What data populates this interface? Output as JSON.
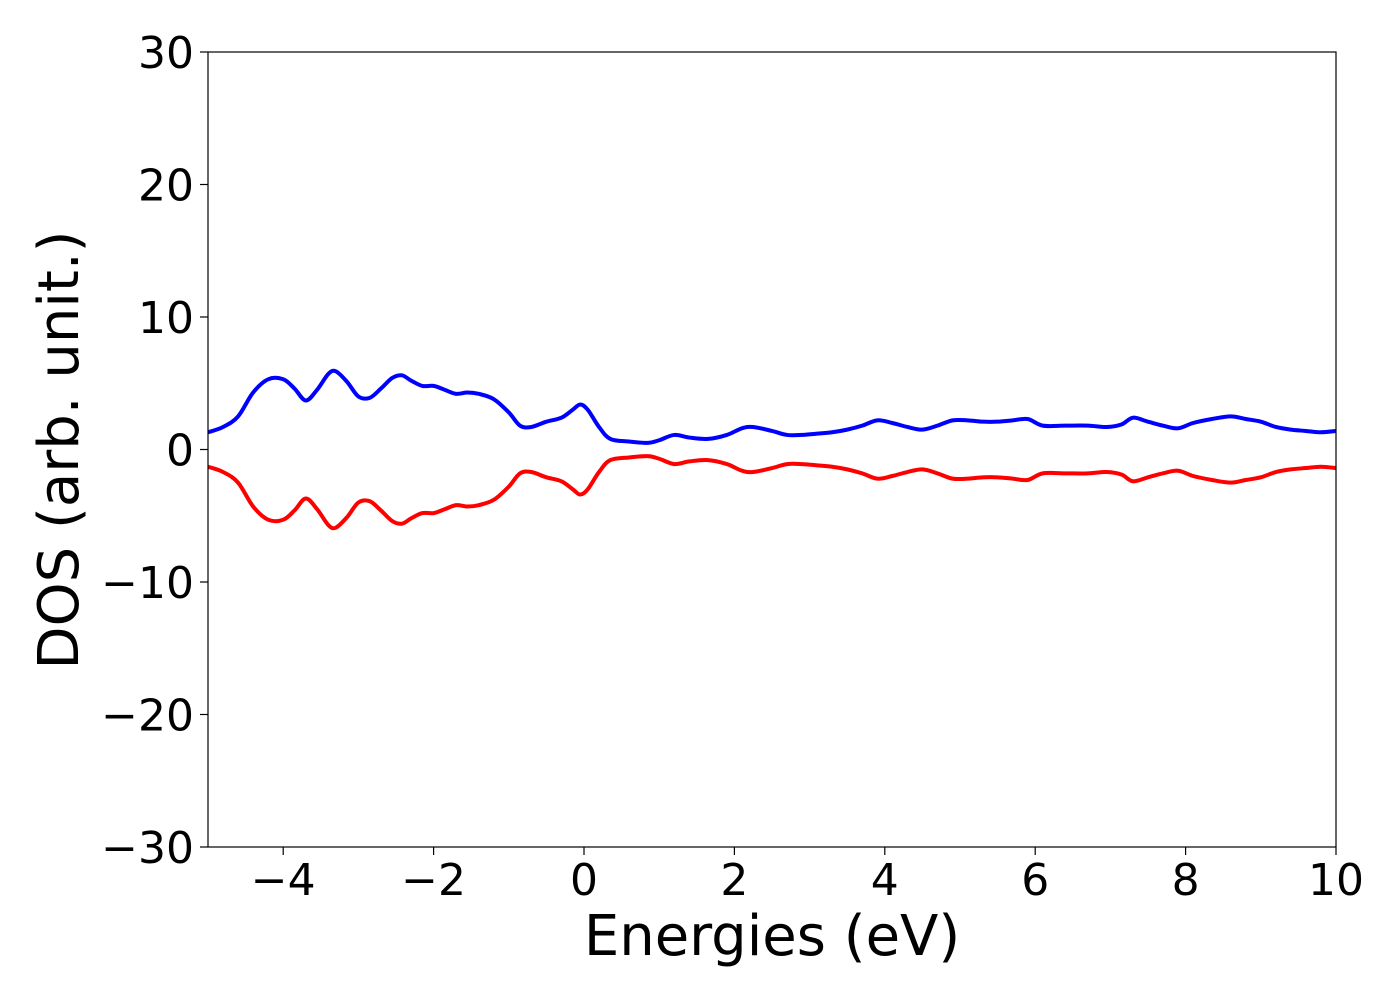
{
  "chart_data": {
    "type": "line",
    "title": "",
    "xlabel": "Energies (eV)",
    "ylabel": "DOS (arb. unit.)",
    "xlim": [
      -5,
      10
    ],
    "ylim": [
      -30,
      30
    ],
    "x_ticks": [
      -4,
      -2,
      0,
      2,
      4,
      6,
      8,
      10
    ],
    "y_ticks": [
      -30,
      -20,
      -10,
      0,
      10,
      20,
      30
    ],
    "x_tick_labels": [
      "−4",
      "−2",
      "0",
      "2",
      "4",
      "6",
      "8",
      "10"
    ],
    "y_tick_labels": [
      "−30",
      "−20",
      "−10",
      "0",
      "10",
      "20",
      "30"
    ],
    "grid": false,
    "legend": "none",
    "series": [
      {
        "color": "#0000ff",
        "x": [
          -5.0,
          -4.8,
          -4.6,
          -4.4,
          -4.2,
          -4.0,
          -3.85,
          -3.7,
          -3.55,
          -3.4,
          -3.3,
          -3.15,
          -3.0,
          -2.85,
          -2.7,
          -2.55,
          -2.42,
          -2.3,
          -2.15,
          -2.0,
          -1.85,
          -1.7,
          -1.55,
          -1.4,
          -1.2,
          -1.0,
          -0.85,
          -0.7,
          -0.5,
          -0.3,
          -0.15,
          -0.05,
          0.05,
          0.2,
          0.35,
          0.6,
          0.85,
          1.0,
          1.2,
          1.4,
          1.65,
          1.9,
          2.1,
          2.25,
          2.5,
          2.7,
          2.9,
          3.1,
          3.3,
          3.5,
          3.7,
          3.9,
          4.1,
          4.3,
          4.5,
          4.7,
          4.9,
          5.1,
          5.3,
          5.5,
          5.7,
          5.9,
          6.1,
          6.4,
          6.7,
          6.95,
          7.15,
          7.3,
          7.5,
          7.7,
          7.9,
          8.1,
          8.35,
          8.6,
          8.8,
          9.0,
          9.2,
          9.4,
          9.6,
          9.8,
          10.0
        ],
        "y": [
          1.3,
          1.7,
          2.5,
          4.3,
          5.3,
          5.3,
          4.6,
          3.7,
          4.5,
          5.7,
          5.9,
          5.1,
          4.0,
          3.9,
          4.6,
          5.4,
          5.6,
          5.2,
          4.8,
          4.8,
          4.5,
          4.2,
          4.3,
          4.2,
          3.8,
          2.8,
          1.8,
          1.7,
          2.1,
          2.4,
          3.0,
          3.4,
          3.0,
          1.7,
          0.8,
          0.6,
          0.5,
          0.7,
          1.1,
          0.9,
          0.8,
          1.1,
          1.6,
          1.7,
          1.4,
          1.1,
          1.1,
          1.2,
          1.3,
          1.5,
          1.8,
          2.2,
          2.0,
          1.7,
          1.5,
          1.8,
          2.2,
          2.2,
          2.1,
          2.1,
          2.2,
          2.3,
          1.8,
          1.8,
          1.8,
          1.7,
          1.9,
          2.4,
          2.1,
          1.8,
          1.6,
          2.0,
          2.3,
          2.5,
          2.3,
          2.1,
          1.7,
          1.5,
          1.4,
          1.3,
          1.4
        ]
      },
      {
        "color": "#ff0000",
        "x": [
          -5.0,
          -4.8,
          -4.6,
          -4.4,
          -4.2,
          -4.0,
          -3.85,
          -3.7,
          -3.55,
          -3.4,
          -3.3,
          -3.15,
          -3.0,
          -2.85,
          -2.7,
          -2.55,
          -2.42,
          -2.3,
          -2.15,
          -2.0,
          -1.85,
          -1.7,
          -1.55,
          -1.4,
          -1.2,
          -1.0,
          -0.85,
          -0.7,
          -0.5,
          -0.3,
          -0.15,
          -0.05,
          0.05,
          0.2,
          0.35,
          0.6,
          0.85,
          1.0,
          1.2,
          1.4,
          1.65,
          1.9,
          2.1,
          2.25,
          2.5,
          2.7,
          2.9,
          3.1,
          3.3,
          3.5,
          3.7,
          3.9,
          4.1,
          4.3,
          4.5,
          4.7,
          4.9,
          5.1,
          5.3,
          5.5,
          5.7,
          5.9,
          6.1,
          6.4,
          6.7,
          6.95,
          7.15,
          7.3,
          7.5,
          7.7,
          7.9,
          8.1,
          8.35,
          8.6,
          8.8,
          9.0,
          9.2,
          9.4,
          9.6,
          9.8,
          10.0
        ],
        "y": [
          -1.3,
          -1.7,
          -2.5,
          -4.3,
          -5.3,
          -5.3,
          -4.6,
          -3.7,
          -4.5,
          -5.7,
          -5.9,
          -5.1,
          -4.0,
          -3.9,
          -4.6,
          -5.4,
          -5.6,
          -5.2,
          -4.8,
          -4.8,
          -4.5,
          -4.2,
          -4.3,
          -4.2,
          -3.8,
          -2.8,
          -1.8,
          -1.7,
          -2.1,
          -2.4,
          -3.0,
          -3.4,
          -3.0,
          -1.7,
          -0.8,
          -0.6,
          -0.5,
          -0.7,
          -1.1,
          -0.9,
          -0.8,
          -1.1,
          -1.6,
          -1.7,
          -1.4,
          -1.1,
          -1.1,
          -1.2,
          -1.3,
          -1.5,
          -1.8,
          -2.2,
          -2.0,
          -1.7,
          -1.5,
          -1.8,
          -2.2,
          -2.2,
          -2.1,
          -2.1,
          -2.2,
          -2.3,
          -1.8,
          -1.8,
          -1.8,
          -1.7,
          -1.9,
          -2.4,
          -2.1,
          -1.8,
          -1.6,
          -2.0,
          -2.3,
          -2.5,
          -2.3,
          -2.1,
          -1.7,
          -1.5,
          -1.4,
          -1.3,
          -1.4
        ]
      }
    ]
  }
}
